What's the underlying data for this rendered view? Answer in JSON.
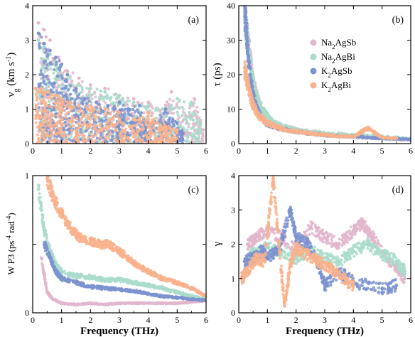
{
  "figure": {
    "legend": [
      {
        "html_label": "Na<sub>2</sub>AgSb",
        "text": "Na2AgSb",
        "color": "#e2b6cc"
      },
      {
        "text": "Na2AgBi",
        "color": "#a9dccb"
      },
      {
        "text": "K2AgSb",
        "color": "#7d93cf"
      },
      {
        "text": "K2AgBi",
        "color": "#f9b28c"
      }
    ],
    "legend_rich": [
      {
        "base": "Na",
        "sub": "2",
        "rest": "AgSb"
      },
      {
        "base": "Na",
        "sub": "2",
        "rest": "AgBi"
      },
      {
        "base": "K",
        "sub": "2",
        "rest": "AgSb"
      },
      {
        "base": "K",
        "sub": "2",
        "rest": "AgBi"
      }
    ]
  },
  "chart_data": [
    {
      "type": "scatter",
      "panel": "(a)",
      "xlabel": "",
      "ylabel": "vg (km s-1)",
      "xlim": [
        0,
        6
      ],
      "ylim": [
        0,
        4
      ],
      "xticks": [
        0,
        1,
        2,
        3,
        4,
        5,
        6
      ],
      "yticks": [
        0,
        1,
        2,
        3,
        4
      ],
      "series": [
        {
          "name": "Na2AgSb",
          "points": [
            [
              0.2,
              3.5
            ],
            [
              0.4,
              3.3
            ],
            [
              0.6,
              3.0
            ],
            [
              0.9,
              2.5
            ],
            [
              1.2,
              2.1
            ],
            [
              1.6,
              1.9
            ],
            [
              2.0,
              1.7
            ],
            [
              2.5,
              1.6
            ],
            [
              3.0,
              1.4
            ],
            [
              3.5,
              1.3
            ],
            [
              4.0,
              1.2
            ],
            [
              4.5,
              1.0
            ],
            [
              4.8,
              1.5
            ],
            [
              5.3,
              0.8
            ],
            [
              5.6,
              1.3
            ],
            [
              5.9,
              0.4
            ]
          ]
        },
        {
          "name": "Na2AgBi",
          "points": [
            [
              0.2,
              3.0
            ],
            [
              0.4,
              2.8
            ],
            [
              0.6,
              2.6
            ],
            [
              0.9,
              2.2
            ],
            [
              1.2,
              2.0
            ],
            [
              1.6,
              1.7
            ],
            [
              2.0,
              1.6
            ],
            [
              2.5,
              1.5
            ],
            [
              3.0,
              1.4
            ],
            [
              3.5,
              1.2
            ],
            [
              4.0,
              1.1
            ],
            [
              4.5,
              1.0
            ],
            [
              5.0,
              1.3
            ],
            [
              5.5,
              1.2
            ],
            [
              5.8,
              0.6
            ]
          ]
        },
        {
          "name": "K2AgSb",
          "points": [
            [
              0.2,
              3.2
            ],
            [
              0.4,
              2.9
            ],
            [
              0.6,
              2.7
            ],
            [
              0.8,
              2.5
            ],
            [
              1.0,
              2.3
            ],
            [
              1.2,
              2.0
            ],
            [
              1.5,
              1.6
            ],
            [
              1.8,
              1.3
            ],
            [
              2.2,
              1.2
            ],
            [
              2.6,
              1.1
            ],
            [
              3.0,
              1.2
            ],
            [
              3.3,
              1.0
            ],
            [
              3.7,
              1.1
            ],
            [
              4.0,
              0.6
            ],
            [
              4.6,
              1.0
            ],
            [
              5.0,
              0.6
            ],
            [
              5.2,
              0.3
            ]
          ]
        },
        {
          "name": "K2AgBi",
          "points": [
            [
              0.1,
              1.6
            ],
            [
              0.3,
              1.6
            ],
            [
              0.5,
              1.5
            ],
            [
              0.8,
              1.4
            ],
            [
              1.0,
              1.3
            ],
            [
              1.3,
              1.2
            ],
            [
              1.6,
              1.1
            ],
            [
              2.0,
              1.1
            ],
            [
              2.5,
              1.0
            ],
            [
              3.0,
              0.9
            ],
            [
              3.5,
              0.7
            ],
            [
              4.0,
              0.9
            ],
            [
              4.3,
              0.6
            ],
            [
              4.6,
              0.5
            ],
            [
              5.0,
              0.4
            ]
          ]
        }
      ]
    },
    {
      "type": "scatter",
      "panel": "(b)",
      "xlabel": "",
      "ylabel": "τ (ps)",
      "xlim": [
        0,
        6
      ],
      "ylim": [
        0,
        40
      ],
      "xticks": [
        0,
        1,
        2,
        3,
        4,
        5,
        6
      ],
      "yticks": [
        0,
        10,
        20,
        30,
        40
      ],
      "legend_position": "upper-right",
      "series": [
        {
          "name": "Na2AgSb",
          "points": [
            [
              0.2,
              38
            ],
            [
              0.3,
              32
            ],
            [
              0.4,
              25
            ],
            [
              0.5,
              18
            ],
            [
              0.7,
              12
            ],
            [
              0.9,
              8
            ],
            [
              1.2,
              6
            ],
            [
              1.5,
              5
            ],
            [
              2.0,
              4
            ],
            [
              2.5,
              3
            ],
            [
              3.0,
              2.5
            ],
            [
              3.5,
              2.2
            ],
            [
              4.0,
              2.0
            ],
            [
              5.0,
              1.5
            ],
            [
              6.0,
              1.0
            ]
          ]
        },
        {
          "name": "Na2AgBi",
          "points": [
            [
              0.2,
              36
            ],
            [
              0.3,
              30
            ],
            [
              0.4,
              24
            ],
            [
              0.5,
              18
            ],
            [
              0.6,
              14
            ],
            [
              0.8,
              10
            ],
            [
              1.0,
              8
            ],
            [
              1.2,
              6
            ],
            [
              1.5,
              5
            ],
            [
              2.0,
              4
            ],
            [
              3.0,
              3
            ],
            [
              4.0,
              2.5
            ],
            [
              5.0,
              2.0
            ],
            [
              6.0,
              1.5
            ]
          ]
        },
        {
          "name": "K2AgSb",
          "points": [
            [
              0.2,
              40
            ],
            [
              0.25,
              35
            ],
            [
              0.3,
              28
            ],
            [
              0.4,
              20
            ],
            [
              0.5,
              14
            ],
            [
              0.7,
              9
            ],
            [
              0.9,
              6
            ],
            [
              1.2,
              5
            ],
            [
              1.6,
              4
            ],
            [
              2.0,
              3.5
            ],
            [
              2.5,
              3.0
            ],
            [
              3.0,
              2.5
            ],
            [
              3.5,
              2.2
            ],
            [
              4.0,
              2.0
            ],
            [
              4.5,
              1.8
            ],
            [
              5.0,
              1.5
            ],
            [
              5.5,
              1.4
            ],
            [
              6.0,
              1.2
            ]
          ]
        },
        {
          "name": "K2AgBi",
          "points": [
            [
              0.2,
              22
            ],
            [
              0.3,
              18
            ],
            [
              0.4,
              14
            ],
            [
              0.5,
              11
            ],
            [
              0.7,
              8
            ],
            [
              1.0,
              6
            ],
            [
              1.3,
              5
            ],
            [
              1.6,
              4
            ],
            [
              2.0,
              3.5
            ],
            [
              2.5,
              3
            ],
            [
              3.0,
              2.5
            ],
            [
              3.5,
              2.2
            ],
            [
              4.0,
              2.0
            ],
            [
              4.5,
              4.5
            ],
            [
              5.0,
              1.8
            ],
            [
              5.5,
              1.5
            ]
          ]
        }
      ]
    },
    {
      "type": "scatter",
      "panel": "(c)",
      "xlabel": "Frequency (THz)",
      "ylabel": "W P3 (ps-4 rad-4)",
      "xlim": [
        0,
        6
      ],
      "ylim": [
        0,
        1
      ],
      "xticks": [
        0,
        1,
        2,
        3,
        4,
        5,
        6
      ],
      "yticks": [
        0,
        0.5,
        1
      ],
      "yticklabels": [
        "0",
        "",
        "1"
      ],
      "series": [
        {
          "name": "Na2AgSb",
          "points": [
            [
              0.3,
              0.4
            ],
            [
              0.5,
              0.15
            ],
            [
              0.7,
              0.1
            ],
            [
              1.0,
              0.07
            ],
            [
              1.5,
              0.06
            ],
            [
              2.0,
              0.07
            ],
            [
              2.5,
              0.06
            ],
            [
              3.0,
              0.07
            ],
            [
              3.5,
              0.07
            ],
            [
              4.0,
              0.07
            ],
            [
              4.5,
              0.07
            ],
            [
              5.0,
              0.07
            ],
            [
              5.5,
              0.08
            ],
            [
              6.0,
              0.09
            ]
          ]
        },
        {
          "name": "Na2AgBi",
          "points": [
            [
              0.2,
              0.9
            ],
            [
              0.4,
              0.6
            ],
            [
              0.6,
              0.45
            ],
            [
              0.8,
              0.35
            ],
            [
              1.0,
              0.3
            ],
            [
              1.5,
              0.27
            ],
            [
              2.0,
              0.26
            ],
            [
              2.5,
              0.24
            ],
            [
              3.0,
              0.24
            ],
            [
              3.5,
              0.22
            ],
            [
              4.0,
              0.2
            ],
            [
              4.5,
              0.18
            ],
            [
              5.0,
              0.15
            ],
            [
              5.5,
              0.12
            ],
            [
              6.0,
              0.1
            ]
          ]
        },
        {
          "name": "K2AgSb",
          "points": [
            [
              0.4,
              0.5
            ],
            [
              0.6,
              0.4
            ],
            [
              0.8,
              0.3
            ],
            [
              1.0,
              0.25
            ],
            [
              1.5,
              0.22
            ],
            [
              2.0,
              0.19
            ],
            [
              2.5,
              0.18
            ],
            [
              3.0,
              0.17
            ],
            [
              3.5,
              0.16
            ],
            [
              4.0,
              0.14
            ],
            [
              4.5,
              0.12
            ],
            [
              5.0,
              0.11
            ],
            [
              5.5,
              0.1
            ],
            [
              6.0,
              0.09
            ]
          ]
        },
        {
          "name": "K2AgBi",
          "points": [
            [
              0.5,
              0.98
            ],
            [
              0.7,
              0.85
            ],
            [
              1.0,
              0.72
            ],
            [
              1.3,
              0.62
            ],
            [
              1.6,
              0.55
            ],
            [
              2.0,
              0.52
            ],
            [
              2.3,
              0.5
            ],
            [
              2.6,
              0.5
            ],
            [
              3.0,
              0.45
            ],
            [
              3.3,
              0.4
            ],
            [
              3.6,
              0.35
            ],
            [
              4.0,
              0.3
            ],
            [
              4.5,
              0.25
            ],
            [
              5.0,
              0.22
            ],
            [
              5.5,
              0.18
            ],
            [
              6.0,
              0.12
            ]
          ]
        }
      ]
    },
    {
      "type": "scatter",
      "panel": "(d)",
      "xlabel": "Frequency (THz)",
      "ylabel": "γ",
      "xlim": [
        0,
        6
      ],
      "ylim": [
        0,
        4
      ],
      "xticks": [
        0,
        1,
        2,
        3,
        4,
        5,
        6
      ],
      "yticks": [
        0,
        1,
        2,
        3,
        4
      ],
      "series": [
        {
          "name": "Na2AgSb",
          "points": [
            [
              0.3,
              2.0
            ],
            [
              0.6,
              2.2
            ],
            [
              1.0,
              2.4
            ],
            [
              1.5,
              2.2
            ],
            [
              2.0,
              1.8
            ],
            [
              2.5,
              2.5
            ],
            [
              3.0,
              2.2
            ],
            [
              3.5,
              2.0
            ],
            [
              4.0,
              2.4
            ],
            [
              4.3,
              2.6
            ],
            [
              4.6,
              2.3
            ],
            [
              5.0,
              1.8
            ],
            [
              5.5,
              1.3
            ],
            [
              5.8,
              1.0
            ]
          ]
        },
        {
          "name": "Na2AgBi",
          "points": [
            [
              0.3,
              1.6
            ],
            [
              0.6,
              1.8
            ],
            [
              1.0,
              1.9
            ],
            [
              1.5,
              1.8
            ],
            [
              2.0,
              1.6
            ],
            [
              2.5,
              1.8
            ],
            [
              3.0,
              1.6
            ],
            [
              3.5,
              1.5
            ],
            [
              4.0,
              1.8
            ],
            [
              4.5,
              2.0
            ],
            [
              5.0,
              1.7
            ],
            [
              5.5,
              1.5
            ],
            [
              5.8,
              1.2
            ]
          ]
        },
        {
          "name": "K2AgSb",
          "points": [
            [
              0.2,
              1.5
            ],
            [
              0.5,
              1.6
            ],
            [
              0.8,
              1.8
            ],
            [
              1.0,
              1.6
            ],
            [
              1.4,
              1.8
            ],
            [
              1.8,
              3.0
            ],
            [
              2.0,
              2.2
            ],
            [
              2.4,
              2.0
            ],
            [
              2.8,
              1.4
            ],
            [
              3.0,
              0.8
            ],
            [
              3.5,
              1.2
            ],
            [
              4.0,
              0.9
            ],
            [
              5.0,
              0.7
            ],
            [
              5.5,
              0.8
            ]
          ]
        },
        {
          "name": "K2AgBi",
          "points": [
            [
              0.1,
              1.0
            ],
            [
              0.3,
              1.2
            ],
            [
              0.6,
              1.6
            ],
            [
              0.9,
              1.5
            ],
            [
              1.2,
              3.9
            ],
            [
              1.4,
              2.0
            ],
            [
              1.6,
              0.2
            ],
            [
              1.8,
              1.4
            ],
            [
              2.0,
              1.9
            ],
            [
              2.4,
              1.7
            ],
            [
              2.8,
              1.5
            ],
            [
              3.2,
              1.3
            ],
            [
              3.6,
              1.0
            ],
            [
              4.0,
              0.8
            ]
          ]
        }
      ]
    }
  ]
}
